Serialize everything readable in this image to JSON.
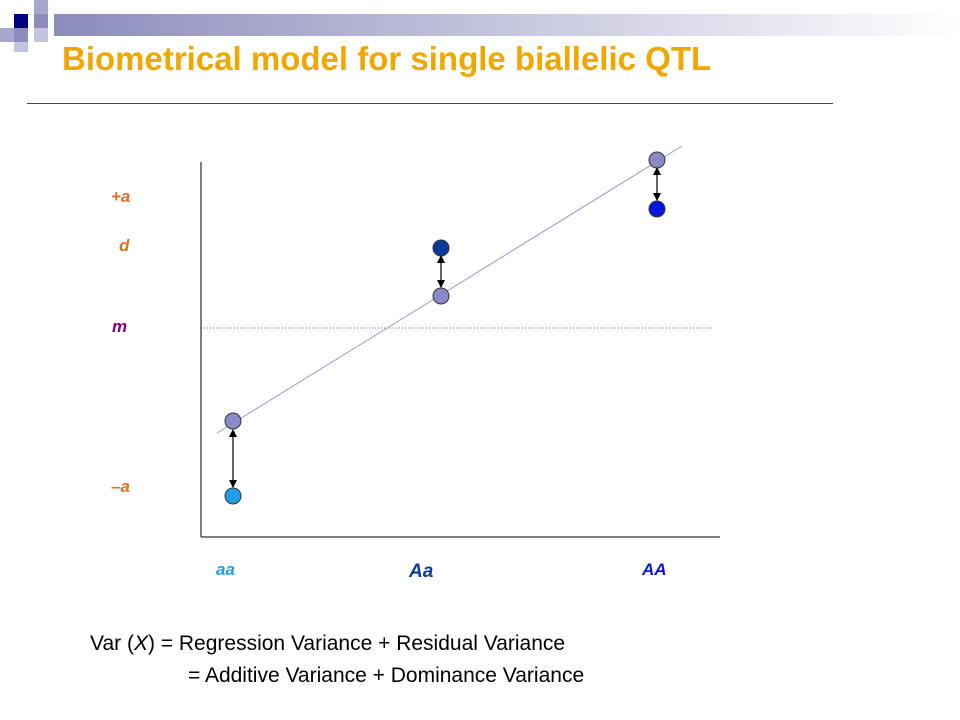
{
  "slide": {
    "title": "Biometrical model for single biallelic QTL"
  },
  "diagram": {
    "y_labels": [
      "+a",
      "d",
      "m",
      "–a"
    ],
    "x_labels": [
      "aa",
      "Aa",
      "AA"
    ]
  },
  "formula": {
    "line1_prefix": "Var (",
    "line1_var": "X",
    "line1_suffix": ") = Regression Variance + Residual Variance",
    "line2": "= Additive Variance + Dominance Variance"
  },
  "colors": {
    "title": "#f0a800",
    "label_orange": "#e07020",
    "label_purple": "#800080",
    "label_blue_light": "#1e9ee8",
    "label_blue_dark": "#0a3a9a",
    "point_predicted": "#8a8ac8",
    "point_aa": "#1e9ee8",
    "point_Aa": "#0a3a9a",
    "point_AA": "#0a14e0"
  }
}
